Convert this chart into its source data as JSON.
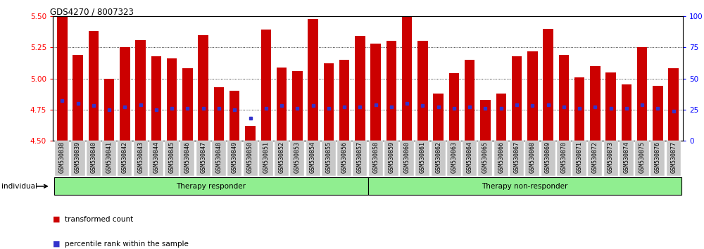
{
  "title": "GDS4270 / 8007323",
  "samples": [
    "GSM530838",
    "GSM530839",
    "GSM530840",
    "GSM530841",
    "GSM530842",
    "GSM530843",
    "GSM530844",
    "GSM530845",
    "GSM530846",
    "GSM530847",
    "GSM530848",
    "GSM530849",
    "GSM530850",
    "GSM530851",
    "GSM530852",
    "GSM530853",
    "GSM530854",
    "GSM530855",
    "GSM530856",
    "GSM530857",
    "GSM530858",
    "GSM530859",
    "GSM530860",
    "GSM530861",
    "GSM530862",
    "GSM530863",
    "GSM530864",
    "GSM530865",
    "GSM530866",
    "GSM530867",
    "GSM530868",
    "GSM530869",
    "GSM530870",
    "GSM530871",
    "GSM530872",
    "GSM530873",
    "GSM530874",
    "GSM530875",
    "GSM530876",
    "GSM530877"
  ],
  "bar_values": [
    5.5,
    5.19,
    5.38,
    5.0,
    5.25,
    5.31,
    5.18,
    5.16,
    5.08,
    5.35,
    4.93,
    4.9,
    4.62,
    5.39,
    5.09,
    5.06,
    5.48,
    5.12,
    5.15,
    5.34,
    5.28,
    5.3,
    5.55,
    5.3,
    4.88,
    5.04,
    5.15,
    4.83,
    4.88,
    5.18,
    5.22,
    5.4,
    5.19,
    5.01,
    5.1,
    5.05,
    4.95,
    5.25,
    4.94,
    5.08
  ],
  "percentile_values": [
    4.82,
    4.8,
    4.78,
    4.75,
    4.77,
    4.79,
    4.75,
    4.76,
    4.76,
    4.76,
    4.76,
    4.75,
    4.68,
    4.76,
    4.78,
    4.76,
    4.78,
    4.76,
    4.77,
    4.77,
    4.79,
    4.77,
    4.8,
    4.78,
    4.77,
    4.76,
    4.77,
    4.76,
    4.76,
    4.79,
    4.78,
    4.79,
    4.77,
    4.76,
    4.77,
    4.76,
    4.76,
    4.79,
    4.76,
    4.74
  ],
  "therapy_responder_count": 20,
  "therapy_nonresponder_count": 20,
  "ylim_left": [
    4.5,
    5.5
  ],
  "ylim_right": [
    0,
    100
  ],
  "yticks_left": [
    4.5,
    4.75,
    5.0,
    5.25,
    5.5
  ],
  "yticks_right": [
    0,
    25,
    50,
    75,
    100
  ],
  "bar_color": "#CC0000",
  "dot_color": "#3333CC",
  "group_color": "#90EE90",
  "tick_label_bg": "#C8C8C8",
  "legend_items": [
    "transformed count",
    "percentile rank within the sample"
  ],
  "individual_label": "individual"
}
